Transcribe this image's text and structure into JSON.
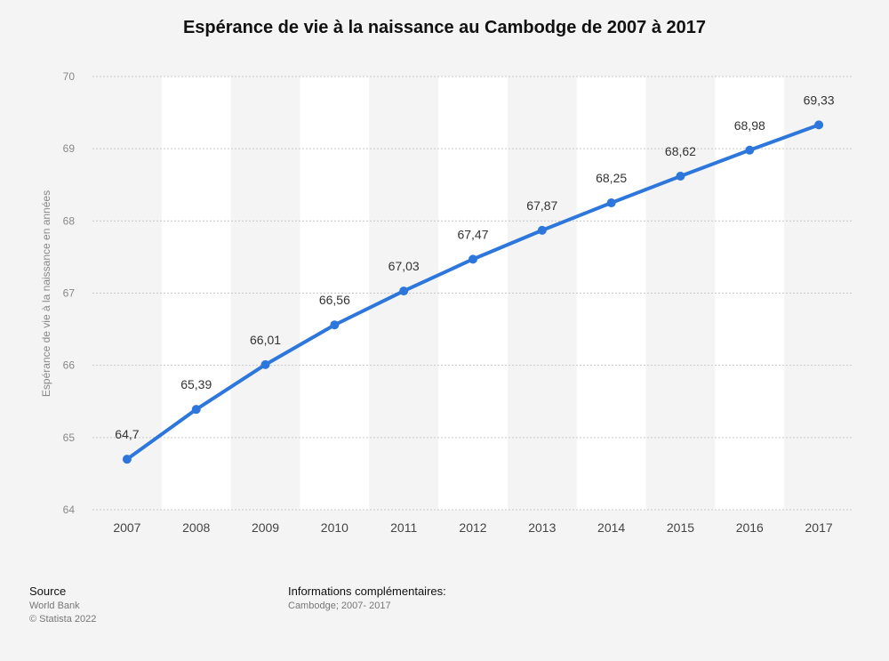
{
  "chart_data": {
    "type": "line",
    "title": "Espérance de vie à la naissance au Cambodge de 2007 à 2017",
    "ylabel": "Espérance de vie à la naissance en années",
    "xlabel": "",
    "categories": [
      "2007",
      "2008",
      "2009",
      "2010",
      "2011",
      "2012",
      "2013",
      "2014",
      "2015",
      "2016",
      "2017"
    ],
    "series": [
      {
        "values": [
          64.7,
          65.39,
          66.01,
          66.56,
          67.03,
          67.47,
          67.87,
          68.25,
          68.62,
          68.98,
          69.33
        ],
        "labels": [
          "64,7",
          "65,39",
          "66,01",
          "66,56",
          "67,03",
          "67,47",
          "67,87",
          "68,25",
          "68,62",
          "68,98",
          "69,33"
        ]
      }
    ],
    "ylim": [
      64,
      70
    ],
    "yticks": [
      "64",
      "65",
      "66",
      "67",
      "68",
      "69",
      "70"
    ],
    "grid": true,
    "line_color": "#2d77dc"
  },
  "footer": {
    "source_heading": "Source",
    "source_lines": [
      "World Bank",
      "© Statista 2022"
    ],
    "info_heading": "Informations complémentaires:",
    "info_text": "Cambodge; 2007- 2017"
  }
}
